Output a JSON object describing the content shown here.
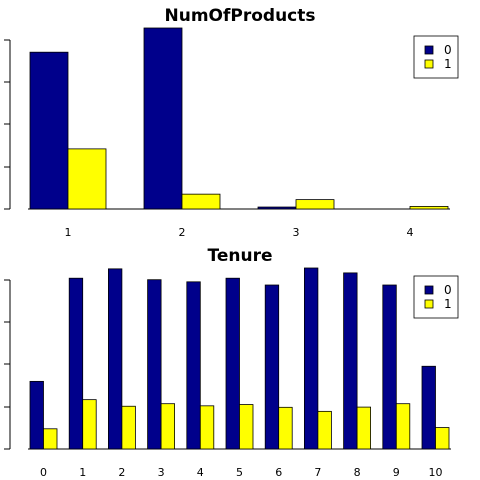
{
  "chart_data": [
    {
      "type": "bar",
      "title": "NumOfProducts",
      "categories": [
        "1",
        "2",
        "3",
        "4"
      ],
      "series": [
        {
          "name": "0",
          "values": [
            3675,
            4242,
            46,
            0
          ]
        },
        {
          "name": "1",
          "values": [
            1409,
            348,
            220,
            60
          ]
        }
      ],
      "ylim": [
        0,
        4242
      ],
      "legend": "top-right",
      "colors": [
        "#00008B",
        "#FFFF00"
      ]
    },
    {
      "type": "bar",
      "title": "Tenure",
      "categories": [
        "0",
        "1",
        "2",
        "3",
        "4",
        "5",
        "6",
        "7",
        "8",
        "9",
        "10"
      ],
      "series": [
        {
          "name": "0",
          "values": [
            318,
            803,
            847,
            796,
            786,
            803,
            771,
            851,
            828,
            771,
            389
          ]
        },
        {
          "name": "1",
          "values": [
            95,
            232,
            201,
            213,
            203,
            209,
            196,
            177,
            197,
            213,
            101
          ]
        }
      ],
      "ylim": [
        0,
        851
      ],
      "legend": "top-right",
      "colors": [
        "#00008B",
        "#FFFF00"
      ]
    }
  ]
}
